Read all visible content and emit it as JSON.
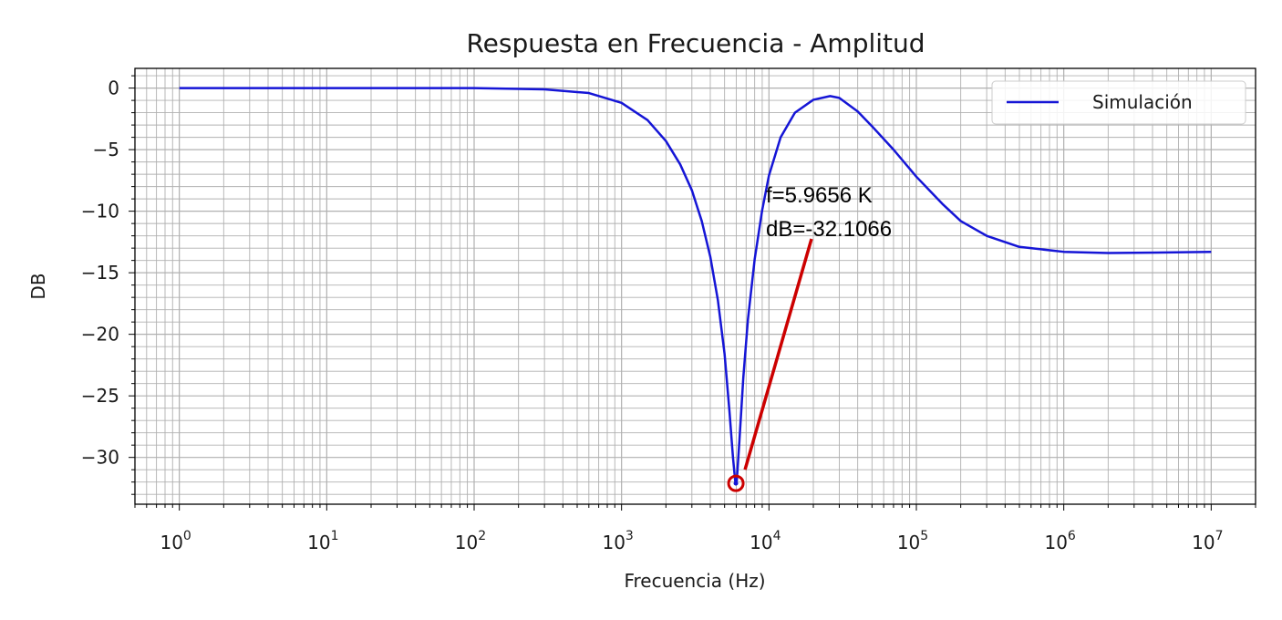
{
  "chart_data": {
    "type": "line",
    "title": "Respuesta en Frecuencia - Amplitud",
    "xlabel": "Frecuencia (Hz)",
    "ylabel": "DB",
    "xscale": "log",
    "xlim": [
      0.5,
      20000000
    ],
    "ylim": [
      -33.8,
      1.6
    ],
    "x_ticks": [
      {
        "base": "10",
        "exp": "0",
        "value": 1
      },
      {
        "base": "10",
        "exp": "1",
        "value": 10
      },
      {
        "base": "10",
        "exp": "2",
        "value": 100
      },
      {
        "base": "10",
        "exp": "3",
        "value": 1000
      },
      {
        "base": "10",
        "exp": "4",
        "value": 10000
      },
      {
        "base": "10",
        "exp": "5",
        "value": 100000
      },
      {
        "base": "10",
        "exp": "6",
        "value": 1000000
      },
      {
        "base": "10",
        "exp": "7",
        "value": 10000000
      }
    ],
    "y_ticks": [
      {
        "label": "0",
        "value": 0
      },
      {
        "label": "−5",
        "value": -5
      },
      {
        "label": "−10",
        "value": -10
      },
      {
        "label": "−15",
        "value": -15
      },
      {
        "label": "−20",
        "value": -20
      },
      {
        "label": "−25",
        "value": -25
      },
      {
        "label": "−30",
        "value": -30
      }
    ],
    "grid": true,
    "legend_position": "top-right",
    "series": [
      {
        "name": "Simulación",
        "color": "#1515d6",
        "x": [
          1,
          10,
          100,
          300,
          600,
          1000,
          1500,
          2000,
          2500,
          3000,
          3500,
          4000,
          4500,
          5000,
          5400,
          5700,
          5900,
          5966,
          6050,
          6300,
          6700,
          7200,
          8000,
          9000,
          10000,
          12000,
          15000,
          20000,
          26000,
          30000,
          40000,
          50000,
          70000,
          100000,
          150000,
          200000,
          300000,
          500000,
          1000000,
          2000000,
          5000000,
          10000000
        ],
        "y": [
          0,
          0,
          0,
          -0.1,
          -0.4,
          -1.2,
          -2.6,
          -4.3,
          -6.2,
          -8.3,
          -10.8,
          -13.7,
          -17.2,
          -21.6,
          -26.3,
          -30.0,
          -31.9,
          -32.1066,
          -31.9,
          -28.7,
          -23.5,
          -18.8,
          -13.9,
          -9.9,
          -7.1,
          -4.0,
          -2.0,
          -0.95,
          -0.65,
          -0.8,
          -1.9,
          -3.1,
          -5.0,
          -7.2,
          -9.4,
          -10.8,
          -12.0,
          -12.9,
          -13.3,
          -13.4,
          -13.35,
          -13.3
        ]
      }
    ],
    "annotation": {
      "line1": "f=5.9656 K",
      "line2": "dB=-32.1066",
      "point": {
        "x": 5966,
        "y": -32.1066
      },
      "marker_color": "#cc0000",
      "arrow_color": "#cc0000"
    }
  }
}
